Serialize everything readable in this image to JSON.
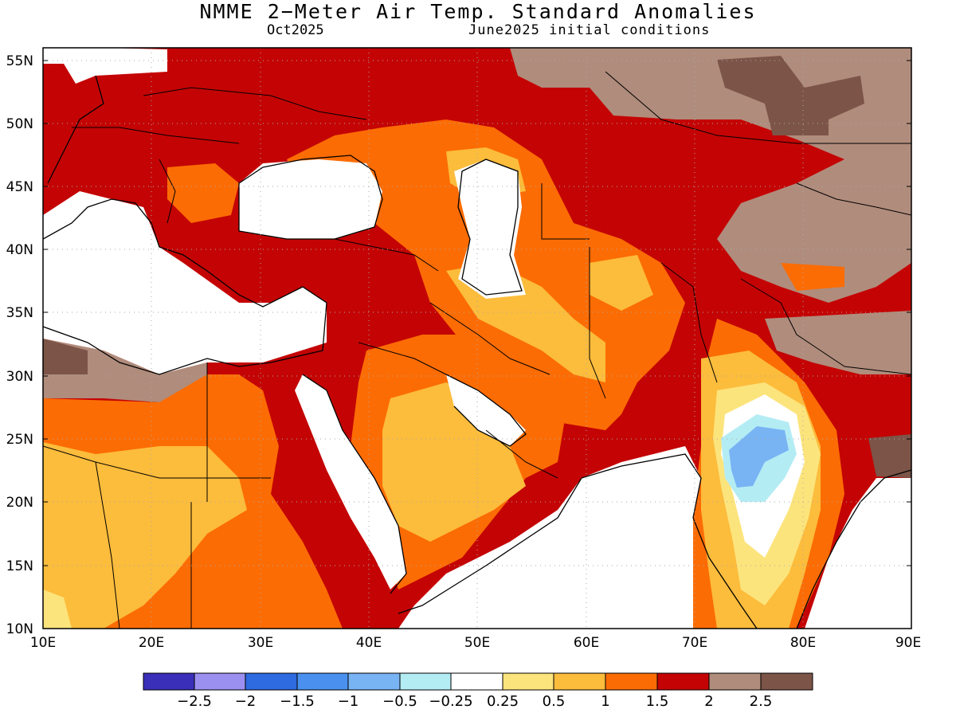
{
  "header": {
    "title": "NMME 2−Meter Air Temp. Standard Anomalies",
    "valid_month": "Oct2025",
    "initial_conditions": "June2025 initial conditions"
  },
  "map": {
    "lon_range": [
      10,
      90
    ],
    "lat_range": [
      10,
      56
    ],
    "y_ticks": [
      "55N",
      "50N",
      "45N",
      "40N",
      "35N",
      "30N",
      "25N",
      "20N",
      "15N",
      "10N"
    ],
    "x_ticks": [
      "10E",
      "20E",
      "30E",
      "40E",
      "50E",
      "60E",
      "70E",
      "80E",
      "90E"
    ],
    "grid": "dotted",
    "land_masked_color": "#ffffff"
  },
  "colorbar": {
    "colors": [
      "#3a2fb8",
      "#9b8ff0",
      "#2e6ae0",
      "#4a90ee",
      "#78b4f4",
      "#b4ecf4",
      "#ffffff",
      "#fce47c",
      "#fcbc3c",
      "#fc6c04",
      "#c40404",
      "#b08c7c",
      "#7c5448"
    ],
    "labels": [
      "−2.5",
      "−2",
      "−1.5",
      "−1",
      "−0.5",
      "−0.25",
      "0.25",
      "0.5",
      "1",
      "1.5",
      "2",
      "2.5"
    ]
  }
}
